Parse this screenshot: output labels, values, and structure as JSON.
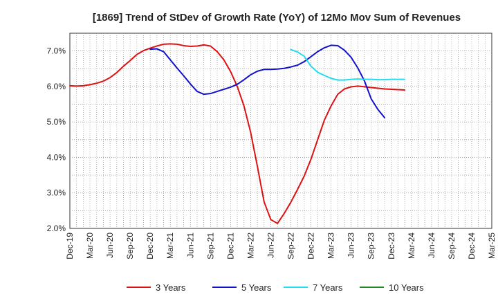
{
  "chart_data": {
    "type": "line",
    "title": "[1869]  Trend of StDev of Growth Rate (YoY) of 12Mo Mov Sum of Revenues",
    "xlabel": "",
    "ylabel": "",
    "ylim": [
      2.0,
      7.5
    ],
    "yticks": [
      2.0,
      3.0,
      4.0,
      5.0,
      6.0,
      7.0
    ],
    "ytick_labels": [
      "2.0%",
      "3.0%",
      "4.0%",
      "5.0%",
      "6.0%",
      "7.0%"
    ],
    "x_labels": [
      "Dec-19",
      "Mar-20",
      "Jun-20",
      "Sep-20",
      "Dec-20",
      "Mar-21",
      "Jun-21",
      "Sep-21",
      "Dec-21",
      "Mar-22",
      "Jun-22",
      "Sep-22",
      "Dec-22",
      "Mar-23",
      "Jun-23",
      "Sep-23",
      "Dec-23",
      "Mar-24",
      "Jun-24",
      "Sep-24",
      "Dec-24",
      "Mar-25"
    ],
    "grid": true,
    "legend_position": "bottom",
    "series": [
      {
        "name": "3 Years",
        "color": "#dd1111",
        "start_index": 0,
        "values": [
          6.02,
          6.01,
          6.02,
          6.05,
          6.09,
          6.15,
          6.25,
          6.39,
          6.57,
          6.73,
          6.9,
          7.01,
          7.08,
          7.14,
          7.19,
          7.2,
          7.19,
          7.15,
          7.13,
          7.14,
          7.17,
          7.14,
          6.98,
          6.75,
          6.42,
          6.0,
          5.45,
          4.7,
          3.75,
          2.75,
          2.25,
          2.14,
          2.42,
          2.74,
          3.1,
          3.48,
          3.95,
          4.5,
          5.05,
          5.45,
          5.78,
          5.93,
          5.99,
          6.01,
          5.99,
          5.97,
          5.95,
          5.93,
          5.92,
          5.91,
          5.9
        ]
      },
      {
        "name": "5 Years",
        "color": "#1111cc",
        "start_index": 12,
        "values": [
          7.05,
          7.06,
          6.98,
          6.75,
          6.52,
          6.3,
          6.07,
          5.86,
          5.78,
          5.8,
          5.86,
          5.92,
          5.98,
          6.06,
          6.19,
          6.33,
          6.43,
          6.48,
          6.48,
          6.49,
          6.51,
          6.55,
          6.6,
          6.7,
          6.84,
          6.98,
          7.09,
          7.16,
          7.15,
          7.02,
          6.82,
          6.52,
          6.15,
          5.65,
          5.35,
          5.12
        ]
      },
      {
        "name": "7 Years",
        "color": "#22ddee",
        "start_index": 33,
        "values": [
          7.04,
          6.97,
          6.85,
          6.57,
          6.4,
          6.31,
          6.23,
          6.18,
          6.18,
          6.2,
          6.21,
          6.2,
          6.2,
          6.19,
          6.19,
          6.2,
          6.2,
          6.2
        ]
      },
      {
        "name": "10 Years",
        "color": "#228822",
        "start_index": 0,
        "values": []
      }
    ]
  }
}
